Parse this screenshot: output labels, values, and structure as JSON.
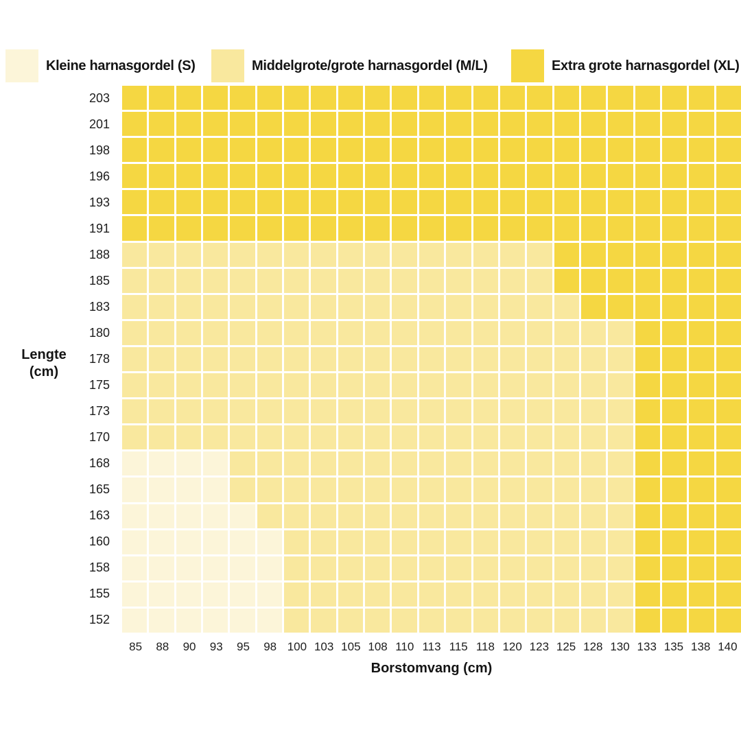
{
  "chart_data": {
    "type": "heatmap",
    "title": "",
    "xlabel": "Borstomvang (cm)",
    "ylabel": "Lengte (cm)",
    "ylabel_lines": [
      "Lengte",
      "(cm)"
    ],
    "x_categories": [
      85,
      88,
      90,
      93,
      95,
      98,
      100,
      103,
      105,
      108,
      110,
      113,
      115,
      118,
      120,
      123,
      125,
      128,
      130,
      133,
      135,
      138,
      140
    ],
    "legend_position": "top",
    "grid_line_color": "#FFFFFF",
    "legend": [
      {
        "key": "S",
        "label": "Kleine harnasgordel (S)",
        "color": "#FCF5D9"
      },
      {
        "key": "M",
        "label": "Middelgrote/grote harnasgordel (M/L)",
        "color": "#F9E89E"
      },
      {
        "key": "X",
        "label": "Extra grote harnasgordel (XL)",
        "color": "#F5D742"
      }
    ],
    "rows": [
      {
        "lengte": 203,
        "cells": "XXXXXXXXXXXXXXXXXXXXXXX"
      },
      {
        "lengte": 201,
        "cells": "XXXXXXXXXXXXXXXXXXXXXXX"
      },
      {
        "lengte": 198,
        "cells": "XXXXXXXXXXXXXXXXXXXXXXX"
      },
      {
        "lengte": 196,
        "cells": "XXXXXXXXXXXXXXXXXXXXXXX"
      },
      {
        "lengte": 193,
        "cells": "XXXXXXXXXXXXXXXXXXXXXXX"
      },
      {
        "lengte": 191,
        "cells": "XXXXXXXXXXXXXXXXXXXXXXX"
      },
      {
        "lengte": 188,
        "cells": "MMMMMMMMMMMMMMMMXXXXXXX"
      },
      {
        "lengte": 185,
        "cells": "MMMMMMMMMMMMMMMMXXXXXXX"
      },
      {
        "lengte": 183,
        "cells": "MMMMMMMMMMMMMMMMMXXXXXX"
      },
      {
        "lengte": 180,
        "cells": "MMMMMMMMMMMMMMMMMMMXXXX"
      },
      {
        "lengte": 178,
        "cells": "MMMMMMMMMMMMMMMMMMMXXXX"
      },
      {
        "lengte": 175,
        "cells": "MMMMMMMMMMMMMMMMMMMXXXX"
      },
      {
        "lengte": 173,
        "cells": "MMMMMMMMMMMMMMMMMMMXXXX"
      },
      {
        "lengte": 170,
        "cells": "MMMMMMMMMMMMMMMMMMMXXXX"
      },
      {
        "lengte": 168,
        "cells": "SSSSMMMMMMMMMMMMMMMXXXX"
      },
      {
        "lengte": 165,
        "cells": "SSSSMMMMMMMMMMMMMMMXXXX"
      },
      {
        "lengte": 163,
        "cells": "SSSSSMMMMMMMMMMMMMMXXXX"
      },
      {
        "lengte": 160,
        "cells": "SSSSSSMMMMMMMMMMMMMXXXX"
      },
      {
        "lengte": 158,
        "cells": "SSSSSSMMMMMMMMMMMMMXXXX"
      },
      {
        "lengte": 155,
        "cells": "SSSSSSMMMMMMMMMMMMMXXXX"
      },
      {
        "lengte": 152,
        "cells": "SSSSSSMMMMMMMMMMMMMXXXX"
      }
    ]
  }
}
